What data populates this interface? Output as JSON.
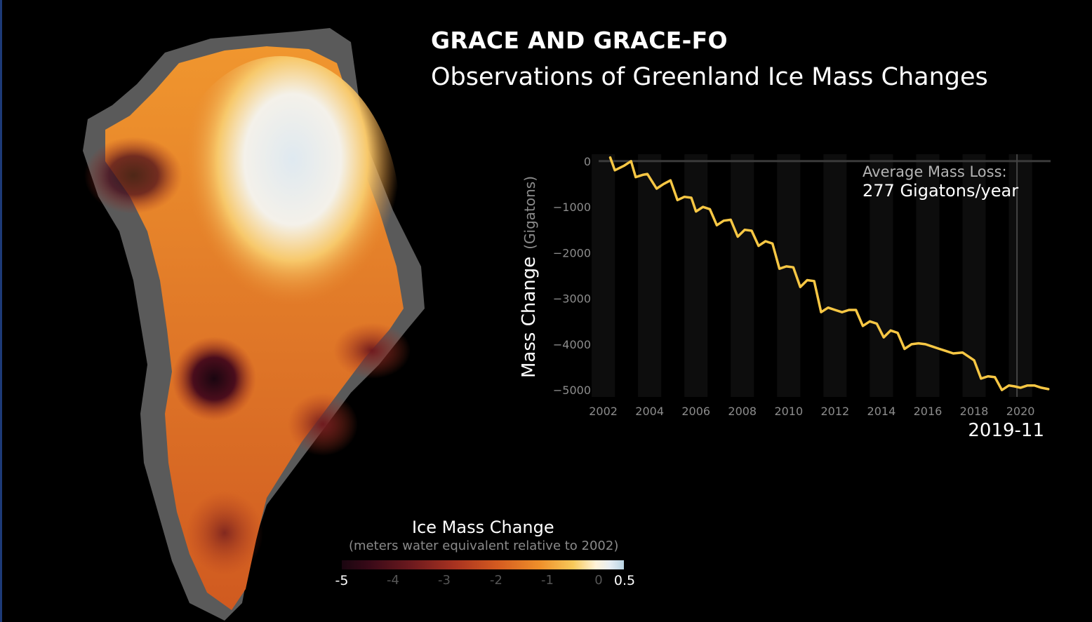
{
  "title": {
    "line1": "GRACE AND GRACE-FO",
    "line2": "Observations of Greenland Ice Mass Changes"
  },
  "colors": {
    "line": "#f7c744",
    "line_gap": "#8a8a8a",
    "axis_text": "#8c8c8c",
    "background": "#000000"
  },
  "chart_data": {
    "type": "line",
    "title": "",
    "xlabel": "",
    "ylabel": "Mass Change",
    "ylabel_units": "(Gigatons)",
    "xlim": [
      2001.8,
      2021.3
    ],
    "ylim": [
      -5150,
      150
    ],
    "x_ticks": [
      2002,
      2004,
      2006,
      2008,
      2010,
      2012,
      2014,
      2016,
      2018,
      2020
    ],
    "x_tick_labels": [
      "2002",
      "2004",
      "2006",
      "2008",
      "2010",
      "2012",
      "2014",
      "2016",
      "2018",
      "2020"
    ],
    "y_ticks": [
      0,
      -1000,
      -2000,
      -3000,
      -4000,
      -5000
    ],
    "y_tick_labels": [
      "0",
      "−1000",
      "−2000",
      "−3000",
      "−4000",
      "−5000"
    ],
    "cursor_x": 2019.85,
    "cursor_label": "2019-11",
    "annotation_label": "Average Mass Loss:",
    "annotation_value": "277 Gigatons/year",
    "series": [
      {
        "name": "Greenland mass change",
        "x": [
          2002.3,
          2002.5,
          2002.9,
          2003.2,
          2003.4,
          2003.7,
          2003.9,
          2004.3,
          2004.6,
          2004.9,
          2005.2,
          2005.5,
          2005.8,
          2006.0,
          2006.3,
          2006.6,
          2006.9,
          2007.2,
          2007.5,
          2007.8,
          2008.1,
          2008.4,
          2008.7,
          2009.0,
          2009.3,
          2009.6,
          2009.9,
          2010.2,
          2010.5,
          2010.8,
          2011.1,
          2011.4,
          2011.7,
          2012.0,
          2012.3,
          2012.6,
          2012.9,
          2013.2,
          2013.5,
          2013.8,
          2014.1,
          2014.4,
          2014.7,
          2015.0,
          2015.3,
          2015.6,
          2015.9,
          2016.2,
          2016.5,
          2016.8,
          2017.1,
          2017.5,
          2018.0,
          2018.3,
          2018.6,
          2018.9,
          2019.2,
          2019.5,
          2019.75,
          2020.0,
          2020.3,
          2020.6,
          2020.9,
          2021.2
        ],
        "y": [
          80,
          -200,
          -100,
          0,
          -350,
          -300,
          -280,
          -600,
          -500,
          -420,
          -850,
          -780,
          -800,
          -1100,
          -1000,
          -1050,
          -1400,
          -1300,
          -1280,
          -1650,
          -1500,
          -1520,
          -1850,
          -1750,
          -1800,
          -2350,
          -2300,
          -2320,
          -2750,
          -2600,
          -2620,
          -3300,
          -3200,
          -3250,
          -3300,
          -3250,
          -3250,
          -3600,
          -3500,
          -3550,
          -3850,
          -3700,
          -3750,
          -4100,
          -4000,
          -3980,
          -4000,
          -4050,
          -4100,
          -4150,
          -4200,
          -4180,
          -4350,
          -4750,
          -4700,
          -4720,
          -5000,
          -4900,
          -4920,
          -4950,
          -4900,
          -4900,
          -4950,
          -4980
        ]
      }
    ]
  },
  "legend": {
    "title": "Ice Mass Change",
    "subtitle": "(meters water equivalent relative to 2002)",
    "tick_labels": [
      "-5",
      "-4",
      "-3",
      "-2",
      "-1",
      "0",
      "0.5"
    ]
  }
}
